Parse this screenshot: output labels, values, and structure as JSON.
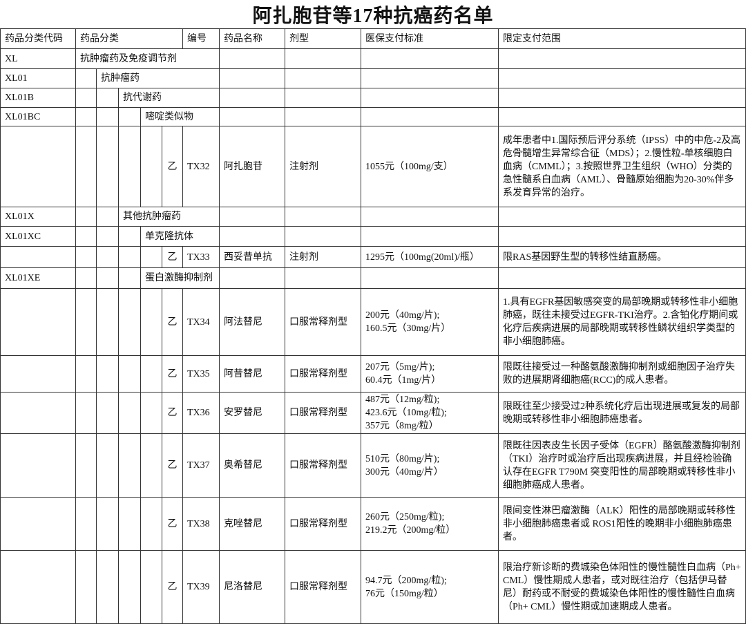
{
  "title": "阿扎胞苷等17种抗癌药名单",
  "header": [
    "药品分类代码",
    "药品分类",
    "编号",
    "药品名称",
    "剂型",
    "医保支付标准",
    "限定支付范围"
  ],
  "rows": [
    [
      "XL",
      "抗肿瘤药及免疫调节剂",
      null,
      null,
      null,
      null,
      null,
      null,
      null,
      null,
      null
    ],
    [
      "XL01",
      null,
      "抗肿瘤药",
      null,
      null,
      null,
      null,
      null,
      null,
      null,
      null
    ],
    [
      "XL01B",
      null,
      null,
      "抗代谢药",
      null,
      null,
      null,
      null,
      null,
      null,
      null
    ],
    [
      "XL01BC",
      null,
      null,
      null,
      "嘧啶类似物",
      null,
      null,
      null,
      null,
      null,
      null
    ],
    [
      null,
      null,
      null,
      null,
      null,
      "乙",
      "TX32",
      "阿扎胞苷",
      "注射剂",
      "1055元（100mg/支）",
      "成年患者中1.国际预后评分系统（IPSS）中的中危-2及高危骨髓增生异常综合征（MDS）；2.慢性粒-单核细胞白血病（CMML）；3.按照世界卫生组织（WHO）分类的急性髓系白血病（AML）、骨髓原始细胞为20-30%伴多系发育异常的治疗。"
    ],
    [
      "XL01X",
      null,
      null,
      "其他抗肿瘤药",
      null,
      null,
      null,
      null,
      null,
      null,
      null
    ],
    [
      "XL01XC",
      null,
      null,
      null,
      "单克隆抗体",
      null,
      null,
      null,
      null,
      null,
      null
    ],
    [
      null,
      null,
      null,
      null,
      null,
      "乙",
      "TX33",
      "西妥昔单抗",
      "注射剂",
      "1295元（100mg(20ml)/瓶）",
      "限RAS基因野生型的转移性结直肠癌。"
    ],
    [
      "XL01XE",
      null,
      null,
      null,
      "蛋白激酶抑制剂",
      null,
      null,
      null,
      null,
      null,
      null
    ],
    [
      null,
      null,
      null,
      null,
      null,
      "乙",
      "TX34",
      "阿法替尼",
      "口服常释剂型",
      "200元（40mg/片);\n160.5元（30mg/片）",
      "1.具有EGFR基因敏感突变的局部晚期或转移性非小细胞肺癌，既往未接受过EGFR-TKI治疗。2.含铂化疗期间或化疗后疾病进展的局部晚期或转移性鳞状组织学类型的非小细胞肺癌。"
    ],
    [
      null,
      null,
      null,
      null,
      null,
      "乙",
      "TX35",
      "阿昔替尼",
      "口服常释剂型",
      "207元（5mg/片);\n60.4元（1mg/片）",
      "限既往接受过一种酪氨酸激酶抑制剂或细胞因子治疗失败的进展期肾细胞癌(RCC)的成人患者。"
    ],
    [
      null,
      null,
      null,
      null,
      null,
      "乙",
      "TX36",
      "安罗替尼",
      "口服常释剂型",
      "487元（12mg/粒);\n423.6元（10mg/粒);\n357元（8mg/粒）",
      "限既往至少接受过2种系统化疗后出现进展或复发的局部晚期或转移性非小细胞肺癌患者。"
    ],
    [
      null,
      null,
      null,
      null,
      null,
      "乙",
      "TX37",
      "奥希替尼",
      "口服常释剂型",
      "510元（80mg/片);\n300元（40mg/片）",
      "限既往因表皮生长因子受体（EGFR）酪氨酸激酶抑制剂（TKI）治疗时或治疗后出现疾病进展，并且经检验确认存在EGFR T790M 突变阳性的局部晚期或转移性非小细胞肺癌成人患者。"
    ],
    [
      null,
      null,
      null,
      null,
      null,
      "乙",
      "TX38",
      "克唑替尼",
      "口服常释剂型",
      "260元（250mg/粒);\n219.2元（200mg/粒）",
      "限间变性淋巴瘤激酶（ALK）阳性的局部晚期或转移性非小细胞肺癌患者或 ROS1阳性的晚期非小细胞肺癌患者。"
    ],
    [
      null,
      null,
      null,
      null,
      null,
      "乙",
      "TX39",
      "尼洛替尼",
      "口服常释剂型",
      "94.7元（200mg/粒);\n76元（150mg/粒）",
      "限治疗新诊断的费城染色体阳性的慢性髓性白血病（Ph+ CML）慢性期成人患者，或对既往治疗（包括伊马替尼）耐药或不耐受的费城染色体阳性的慢性髓性白血病（Ph+ CML）慢性期或加速期成人患者。"
    ]
  ]
}
